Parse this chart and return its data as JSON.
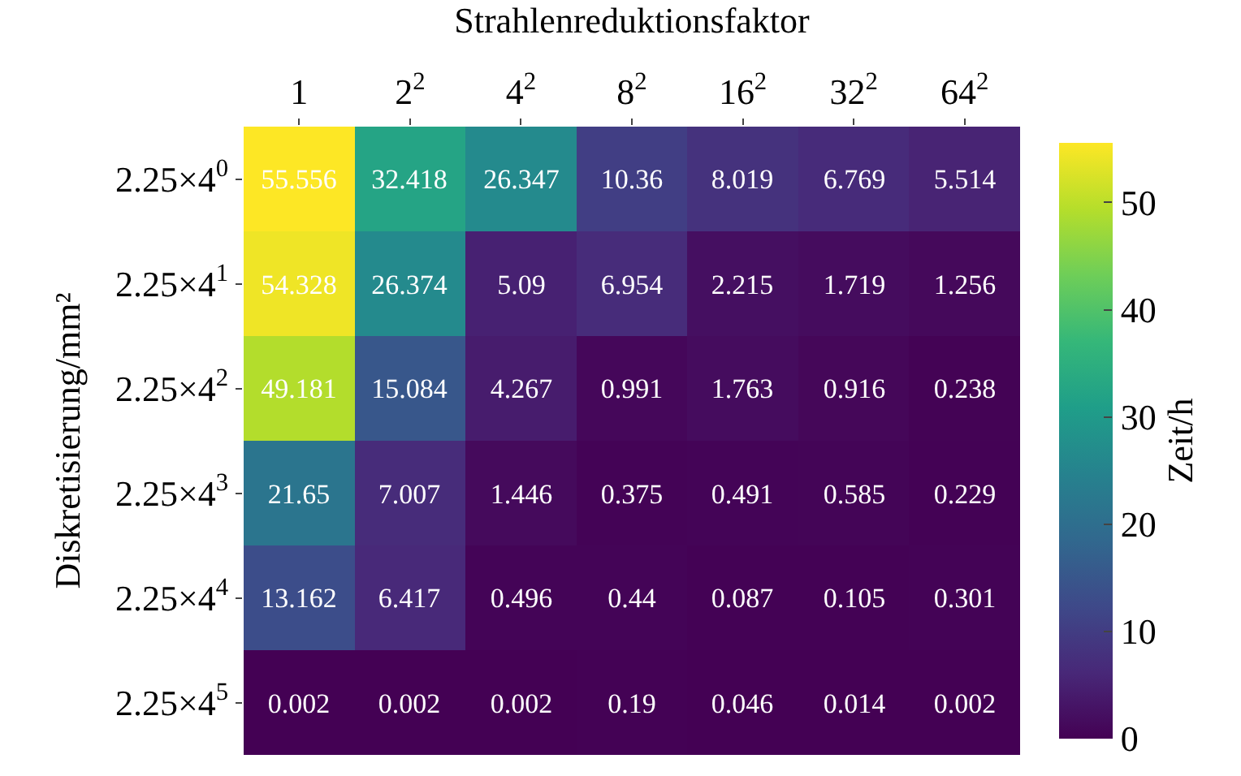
{
  "chart_data": {
    "type": "heatmap",
    "xlabel": "Strahlenreduktionsfaktor",
    "ylabel": "Diskretisierung/mm²",
    "clabel": "Zeit/h",
    "categories": [
      "1",
      "2$^{2}$",
      "4$^{2}$",
      "8$^{2}$",
      "16$^{2}$",
      "32$^{2}$",
      "64$^{2}$"
    ],
    "y_categories": [
      "2.25×4$^{0}$",
      "2.25×4$^{1}$",
      "2.25×4$^{2}$",
      "2.25×4$^{3}$",
      "2.25×4$^{4}$",
      "2.25×4$^{5}$"
    ],
    "cells": [
      [
        55.556,
        32.418,
        26.347,
        10.36,
        8.019,
        6.769,
        5.514
      ],
      [
        54.328,
        26.374,
        5.09,
        6.954,
        2.215,
        1.719,
        1.256
      ],
      [
        49.181,
        15.084,
        4.267,
        0.991,
        1.763,
        0.916,
        0.238
      ],
      [
        21.65,
        7.007,
        1.446,
        0.375,
        0.491,
        0.585,
        0.229
      ],
      [
        13.162,
        6.417,
        0.496,
        0.44,
        0.087,
        0.105,
        0.301
      ],
      [
        0.002,
        0.002,
        0.002,
        0.19,
        0.046,
        0.014,
        0.002
      ]
    ],
    "data_labels": true,
    "clim": [
      0,
      55.556
    ],
    "cticks": [
      0,
      10,
      20,
      30,
      40,
      50
    ]
  }
}
